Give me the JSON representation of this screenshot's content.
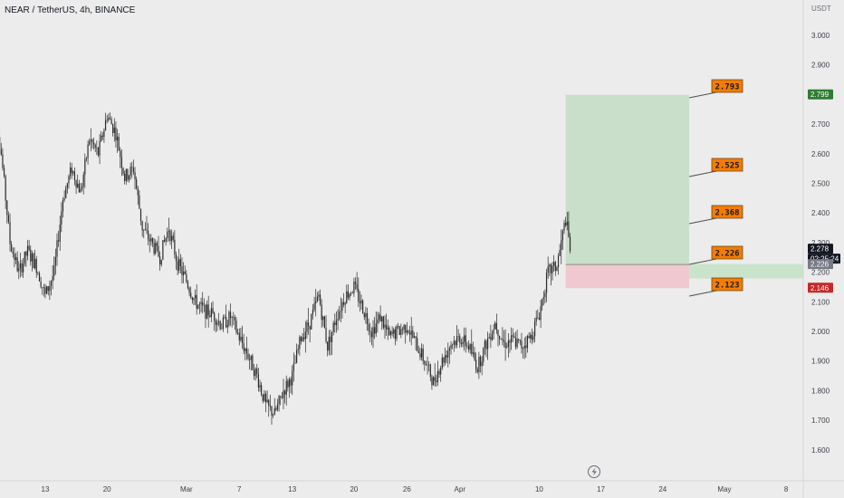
{
  "header": {
    "symbol_title": "NEAR / TetherUS, 4h, BINANCE"
  },
  "price_scale": {
    "unit": "USDT"
  },
  "colors": {
    "background": "#ececec",
    "candle": "#2b2b2b",
    "profit_zone": "#c9dfc9",
    "loss_zone": "#efc9cf",
    "entry_band": "#c4e2c6",
    "target_label": "#f57c00",
    "badge_green": "#2e7d32",
    "badge_red": "#c62828",
    "badge_dark": "#131722",
    "badge_grey": "#787b86"
  },
  "chart_data": {
    "type": "candlestick",
    "y_ticks": [
      "3.000",
      "2.900",
      "2.800",
      "2.700",
      "2.600",
      "2.500",
      "2.400",
      "2.300",
      "2.200",
      "2.100",
      "2.000",
      "1.900",
      "1.800",
      "1.700",
      "1.600"
    ],
    "ylim": [
      1.52,
      3.09
    ],
    "x_ticks": [
      "13",
      "20",
      "Mar",
      "7",
      "13",
      "20",
      "26",
      "Apr",
      "10",
      "17",
      "24",
      "May",
      "8"
    ],
    "price_path": [
      {
        "x": "Feb 7",
        "y": 2.82
      },
      {
        "x": "Feb 8",
        "y": 2.6
      },
      {
        "x": "Feb 9",
        "y": 2.3
      },
      {
        "x": "Feb 10",
        "y": 2.2
      },
      {
        "x": "Feb 11",
        "y": 2.27
      },
      {
        "x": "Feb 12",
        "y": 2.22
      },
      {
        "x": "Feb 13",
        "y": 2.12
      },
      {
        "x": "Feb 14",
        "y": 2.2
      },
      {
        "x": "Feb 15",
        "y": 2.45
      },
      {
        "x": "Feb 16",
        "y": 2.55
      },
      {
        "x": "Feb 17",
        "y": 2.47
      },
      {
        "x": "Feb 18",
        "y": 2.65
      },
      {
        "x": "Feb 19",
        "y": 2.6
      },
      {
        "x": "Feb 20",
        "y": 2.73
      },
      {
        "x": "Feb 21",
        "y": 2.67
      },
      {
        "x": "Feb 22",
        "y": 2.52
      },
      {
        "x": "Feb 23",
        "y": 2.55
      },
      {
        "x": "Feb 24",
        "y": 2.35
      },
      {
        "x": "Feb 25",
        "y": 2.3
      },
      {
        "x": "Feb 26",
        "y": 2.25
      },
      {
        "x": "Feb 27",
        "y": 2.35
      },
      {
        "x": "Feb 28",
        "y": 2.23
      },
      {
        "x": "Mar 1",
        "y": 2.17
      },
      {
        "x": "Mar 2",
        "y": 2.1
      },
      {
        "x": "Mar 3",
        "y": 2.07
      },
      {
        "x": "Mar 4",
        "y": 2.06
      },
      {
        "x": "Mar 5",
        "y": 2.02
      },
      {
        "x": "Mar 6",
        "y": 2.05
      },
      {
        "x": "Mar 7",
        "y": 1.98
      },
      {
        "x": "Mar 8",
        "y": 1.92
      },
      {
        "x": "Mar 9",
        "y": 1.85
      },
      {
        "x": "Mar 10",
        "y": 1.75
      },
      {
        "x": "Mar 11",
        "y": 1.72
      },
      {
        "x": "Mar 12",
        "y": 1.8
      },
      {
        "x": "Mar 13",
        "y": 1.85
      },
      {
        "x": "Mar 14",
        "y": 1.98
      },
      {
        "x": "Mar 15",
        "y": 2.03
      },
      {
        "x": "Mar 16",
        "y": 2.12
      },
      {
        "x": "Mar 17",
        "y": 1.95
      },
      {
        "x": "Mar 18",
        "y": 2.05
      },
      {
        "x": "Mar 19",
        "y": 2.12
      },
      {
        "x": "Mar 20",
        "y": 2.15
      },
      {
        "x": "Mar 21",
        "y": 2.08
      },
      {
        "x": "Mar 22",
        "y": 2.0
      },
      {
        "x": "Mar 23",
        "y": 2.05
      },
      {
        "x": "Mar 24",
        "y": 1.98
      },
      {
        "x": "Mar 25",
        "y": 2.0
      },
      {
        "x": "Mar 26",
        "y": 2.02
      },
      {
        "x": "Mar 27",
        "y": 1.96
      },
      {
        "x": "Mar 28",
        "y": 1.9
      },
      {
        "x": "Mar 29",
        "y": 1.83
      },
      {
        "x": "Mar 30",
        "y": 1.9
      },
      {
        "x": "Mar 31",
        "y": 1.96
      },
      {
        "x": "Apr 1",
        "y": 1.98
      },
      {
        "x": "Apr 2",
        "y": 1.95
      },
      {
        "x": "Apr 3",
        "y": 1.88
      },
      {
        "x": "Apr 4",
        "y": 1.96
      },
      {
        "x": "Apr 5",
        "y": 2.03
      },
      {
        "x": "Apr 6",
        "y": 1.96
      },
      {
        "x": "Apr 7",
        "y": 1.97
      },
      {
        "x": "Apr 8",
        "y": 1.95
      },
      {
        "x": "Apr 9",
        "y": 1.98
      },
      {
        "x": "Apr 10",
        "y": 2.06
      },
      {
        "x": "Apr 11",
        "y": 2.2
      },
      {
        "x": "Apr 12",
        "y": 2.22
      },
      {
        "x": "Apr 13",
        "y": 2.38
      },
      {
        "x": "Apr 13.5",
        "y": 2.28
      }
    ],
    "position": {
      "entry": 2.226,
      "stop": 2.146,
      "target": 2.799,
      "start": "Apr 13",
      "end": "Apr 27"
    },
    "target_labels": [
      {
        "text": "2.793",
        "value": 2.793
      },
      {
        "text": "2.525",
        "value": 2.525
      },
      {
        "text": "2.368",
        "value": 2.368
      },
      {
        "text": "2.226",
        "value": 2.226
      },
      {
        "text": "2.123",
        "value": 2.123
      }
    ],
    "price_badges": [
      {
        "text": "2.799",
        "value": 2.799,
        "color": "#2e7d32"
      },
      {
        "text": "2.278",
        "value": 2.278,
        "color": "#131722"
      },
      {
        "text": "02:25:24",
        "value": 2.278,
        "color": "#131722"
      },
      {
        "text": "2.226",
        "value": 2.226,
        "color": "#787b86"
      },
      {
        "text": "2.146",
        "value": 2.146,
        "color": "#c62828"
      }
    ]
  }
}
